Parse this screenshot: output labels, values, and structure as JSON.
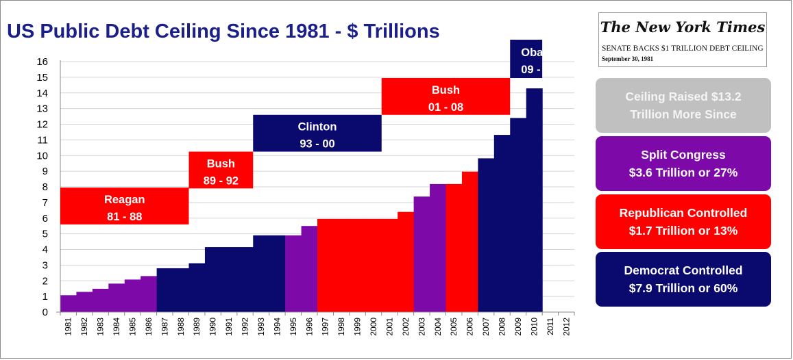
{
  "title": "US Public Debt Ceiling Since 1981 - $ Trillions",
  "colors": {
    "democrat": "#0a0a6e",
    "republican": "#ff0000",
    "split": "#7d0aa8",
    "ceiling": "#c0c0c0",
    "title": "#1a1f8a"
  },
  "chart_data": {
    "type": "bar",
    "title": "US Public Debt Ceiling Since 1981 - $ Trillions",
    "ylim": [
      0,
      16
    ],
    "yticks": [
      0,
      1,
      2,
      3,
      4,
      5,
      6,
      7,
      8,
      9,
      10,
      11,
      12,
      13,
      14,
      15,
      16
    ],
    "categories": [
      "1981",
      "1982",
      "1983",
      "1984",
      "1985",
      "1986",
      "1987",
      "1988",
      "1989",
      "1990",
      "1991",
      "1992",
      "1993",
      "1994",
      "1995",
      "1996",
      "1997",
      "1998",
      "1999",
      "2000",
      "2001",
      "2002",
      "2003",
      "2004",
      "2005",
      "2006",
      "2007",
      "2008",
      "2009",
      "2010",
      "2011",
      "2012"
    ],
    "values": [
      1.08,
      1.29,
      1.49,
      1.82,
      2.08,
      2.3,
      2.8,
      2.8,
      3.12,
      4.15,
      4.15,
      4.15,
      4.9,
      4.9,
      4.9,
      5.5,
      5.95,
      5.95,
      5.95,
      5.95,
      5.95,
      6.4,
      7.38,
      8.18,
      8.18,
      8.97,
      9.82,
      11.32,
      12.4,
      14.29,
      null,
      null
    ],
    "party": [
      "split",
      "split",
      "split",
      "split",
      "split",
      "split",
      "democrat",
      "democrat",
      "democrat",
      "democrat",
      "democrat",
      "democrat",
      "democrat",
      "democrat",
      "split",
      "split",
      "republican",
      "republican",
      "republican",
      "republican",
      "republican",
      "republican",
      "split",
      "split",
      "republican",
      "republican",
      "democrat",
      "democrat",
      "democrat",
      "democrat",
      null,
      null
    ],
    "eras": [
      {
        "name": "Reagan",
        "years": "81 - 88",
        "party": "republican",
        "start": 1981,
        "end": 1988,
        "ybottom": 5.6,
        "ytop": 7.95
      },
      {
        "name": "Bush",
        "years": "89 - 92",
        "party": "republican",
        "start": 1989,
        "end": 1992,
        "ybottom": 7.9,
        "ytop": 10.25
      },
      {
        "name": "Clinton",
        "years": "93 - 00",
        "party": "democrat",
        "start": 1993,
        "end": 2000,
        "ybottom": 10.25,
        "ytop": 12.6
      },
      {
        "name": "Bush",
        "years": "01 - 08",
        "party": "republican",
        "start": 2001,
        "end": 2008,
        "ybottom": 12.6,
        "ytop": 14.95
      },
      {
        "name": "Obama",
        "years": "09 -",
        "party": "democrat",
        "start": 2009,
        "end": 2010,
        "ybottom": 14.95,
        "ytop": 17.4
      }
    ]
  },
  "nyt": {
    "masthead": "The New York Times",
    "headline": "SENATE BACKS $1 TRILLION DEBT CEILING",
    "date": "September 30, 1981"
  },
  "panels": [
    {
      "lines": [
        "Ceiling Raised $13.2",
        "Trillion More Since"
      ],
      "color": "#c0c0c0",
      "text_color": "#f4f4f4"
    },
    {
      "lines": [
        "Split Congress",
        "$3.6 Trillion or 27%"
      ],
      "color": "#7d0aa8",
      "text_color": "#ffffff"
    },
    {
      "lines": [
        "Republican Controlled",
        "$1.7 Trillion or 13%"
      ],
      "color": "#ff0000",
      "text_color": "#ffffff"
    },
    {
      "lines": [
        "Democrat Controlled",
        "$7.9 Trillion or 60%"
      ],
      "color": "#0a0a6e",
      "text_color": "#ffffff"
    }
  ]
}
